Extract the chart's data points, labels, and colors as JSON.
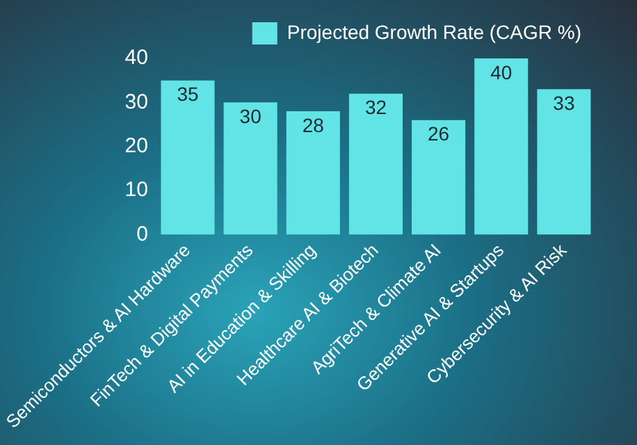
{
  "chart_data": {
    "type": "bar",
    "categories": [
      "Semiconductors & AI Hardware",
      "FinTech & Digital Payments",
      "AI in Education & Skilling",
      "Healthcare AI & Biotech",
      "AgriTech & Climate AI",
      "Generative AI & Startups",
      "Cybersecurity & AI Risk"
    ],
    "series": [
      {
        "name": "Projected Growth Rate (CAGR %)",
        "color": "#62e4e6",
        "values": [
          35,
          30,
          28,
          32,
          26,
          40,
          33
        ]
      }
    ],
    "ylim": [
      0,
      40
    ],
    "yticks": [
      0,
      10,
      20,
      30,
      40
    ],
    "grid": false,
    "legend": "top right",
    "data_labels": true
  }
}
